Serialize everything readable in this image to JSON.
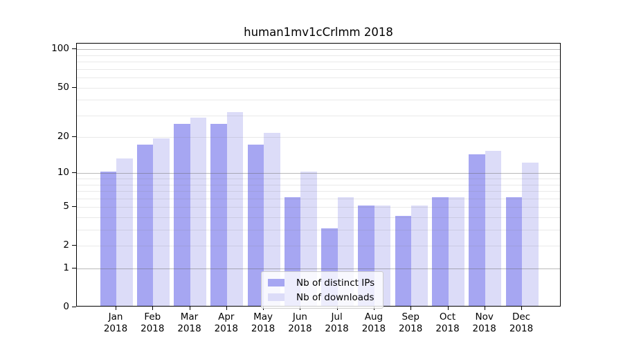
{
  "title": "human1mv1cCrlmm 2018",
  "chart_data": {
    "type": "bar",
    "title": "human1mv1cCrlmm 2018",
    "categories": [
      "Jan 2018",
      "Feb 2018",
      "Mar 2018",
      "Apr 2018",
      "May 2018",
      "Jun 2018",
      "Jul 2018",
      "Aug 2018",
      "Sep 2018",
      "Oct 2018",
      "Nov 2018",
      "Dec 2018"
    ],
    "x_month_labels": [
      "Jan",
      "Feb",
      "Mar",
      "Apr",
      "May",
      "Jun",
      "Jul",
      "Aug",
      "Sep",
      "Oct",
      "Nov",
      "Dec"
    ],
    "x_year_label": "2018",
    "series": [
      {
        "name": "Nb of distinct IPs",
        "color": "#a6a6f2",
        "values": [
          10,
          17,
          25,
          25,
          17,
          6,
          3,
          5,
          4,
          6,
          14,
          6
        ]
      },
      {
        "name": "Nb of downloads",
        "color": "#dcdcf8",
        "values": [
          13,
          19,
          28,
          31,
          21,
          10,
          6,
          5,
          5,
          6,
          15,
          12
        ]
      }
    ],
    "xlabel": "",
    "ylabel": "",
    "yscale": "log1p",
    "ylim": [
      0,
      111
    ],
    "y_tick_labels": [
      100,
      50,
      20,
      10,
      5,
      2,
      1,
      0
    ],
    "y_gridlines_major": [
      1,
      10,
      100
    ],
    "y_gridlines_minor": [
      2,
      3,
      4,
      5,
      6,
      7,
      8,
      9,
      20,
      30,
      40,
      50,
      60,
      70,
      80,
      90
    ],
    "grid": true,
    "legend_position": "lower center"
  }
}
